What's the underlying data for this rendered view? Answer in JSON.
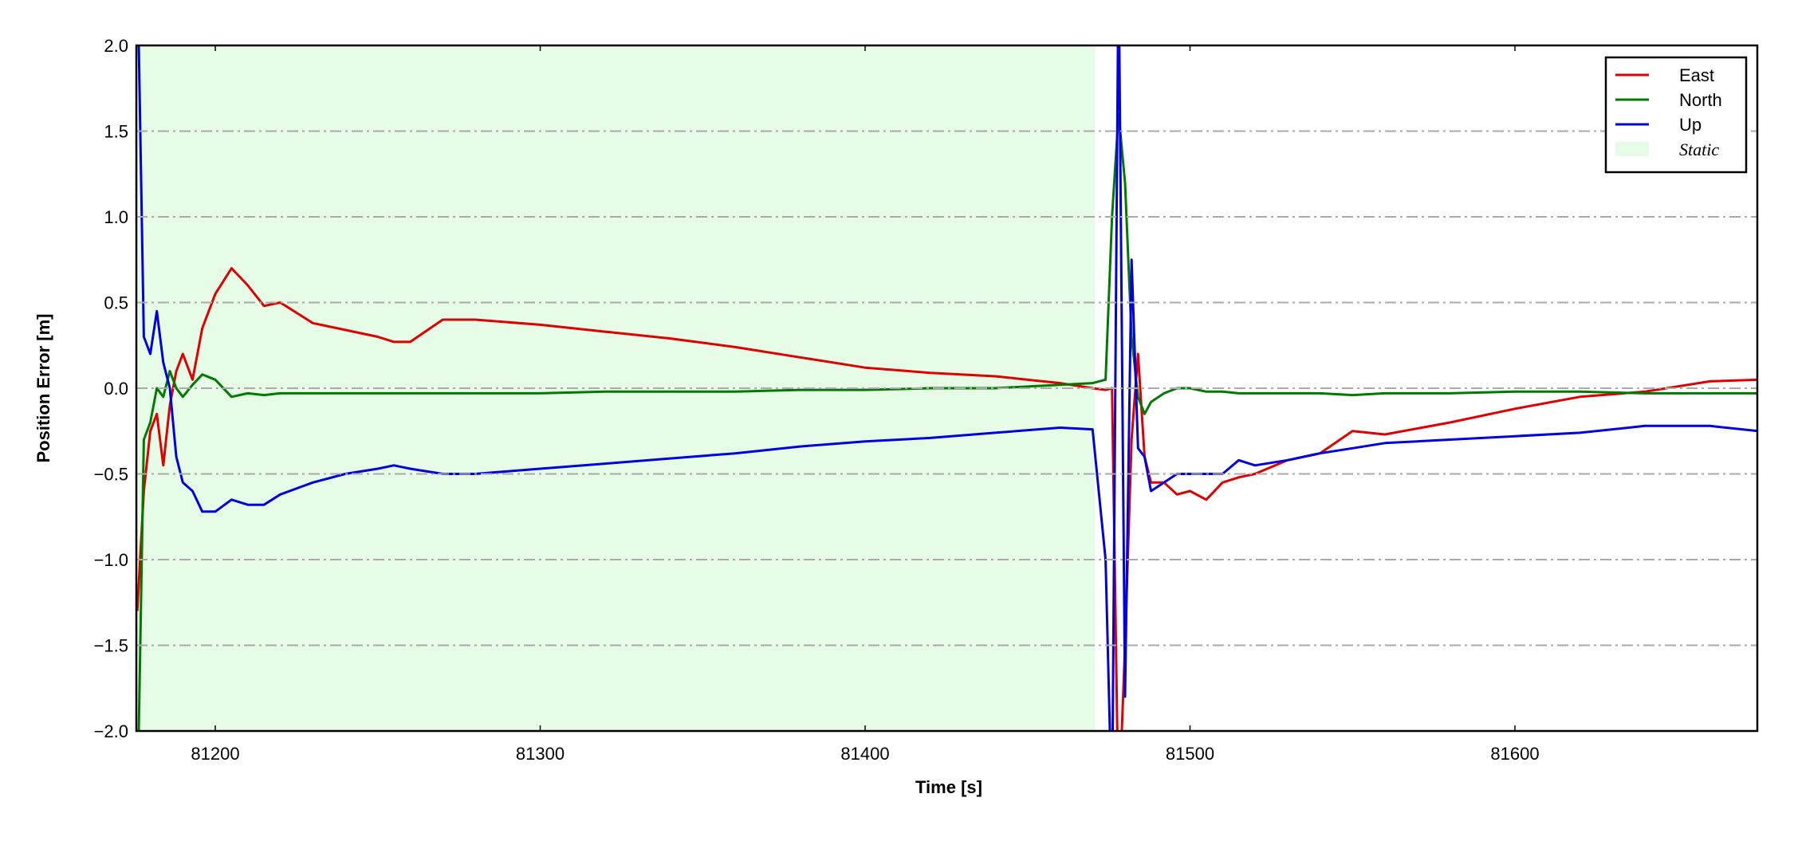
{
  "chart_data": {
    "type": "line",
    "xlabel": "Time [s]",
    "ylabel": "Position Error [m]",
    "xlim": [
      81175.7,
      81674.6
    ],
    "ylim": [
      -2.0,
      2.0
    ],
    "xticks": [
      81200,
      81300,
      81400,
      81500,
      81600
    ],
    "yticks": [
      {
        "value": -2.0,
        "label": "−2.0"
      },
      {
        "value": -1.5,
        "label": "−1.5"
      },
      {
        "value": -1.0,
        "label": "−1.0"
      },
      {
        "value": -0.5,
        "label": "−0.5"
      },
      {
        "value": 0.0,
        "label": "0.0"
      },
      {
        "value": 0.5,
        "label": "0.5"
      },
      {
        "value": 1.0,
        "label": "1.0"
      },
      {
        "value": 1.5,
        "label": "1.5"
      },
      {
        "value": 2.0,
        "label": "2.0"
      }
    ],
    "grid": "y",
    "legend": "upper right",
    "spans": [
      {
        "name": "Static",
        "start": 81175.7,
        "end": 81470.8,
        "color": "#e6fce6"
      }
    ],
    "x": [
      81176,
      81178,
      81180,
      81182,
      81184,
      81186,
      81188,
      81190,
      81193,
      81196,
      81200,
      81205,
      81210,
      81215,
      81220,
      81230,
      81240,
      81250,
      81255,
      81260,
      81270,
      81280,
      81300,
      81320,
      81340,
      81360,
      81380,
      81400,
      81420,
      81440,
      81460,
      81470,
      81474,
      81476,
      81478,
      81480,
      81482,
      81484,
      81486,
      81488,
      81492,
      81496,
      81500,
      81505,
      81510,
      81515,
      81520,
      81530,
      81540,
      81550,
      81560,
      81580,
      81600,
      81620,
      81640,
      81660,
      81675
    ],
    "series": [
      {
        "name": "East",
        "color": "#e00000",
        "values": [
          -1.3,
          -0.6,
          -0.25,
          -0.15,
          -0.45,
          -0.1,
          0.1,
          0.2,
          0.05,
          0.35,
          0.55,
          0.7,
          0.6,
          0.48,
          0.5,
          0.38,
          0.34,
          0.3,
          0.27,
          0.27,
          0.4,
          0.4,
          0.37,
          0.33,
          0.29,
          0.24,
          0.18,
          0.12,
          0.09,
          0.07,
          0.03,
          0.0,
          -0.01,
          0.0,
          -2.5,
          -1.5,
          -0.3,
          0.2,
          -0.4,
          -0.55,
          -0.55,
          -0.62,
          -0.6,
          -0.65,
          -0.55,
          -0.52,
          -0.5,
          -0.42,
          -0.38,
          -0.25,
          -0.27,
          -0.2,
          -0.12,
          -0.05,
          -0.02,
          0.04,
          0.05
        ]
      },
      {
        "name": "North",
        "color": "#007a00",
        "values": [
          -2.5,
          -0.3,
          -0.2,
          0.0,
          -0.05,
          0.1,
          0.0,
          -0.05,
          0.02,
          0.08,
          0.05,
          -0.05,
          -0.03,
          -0.04,
          -0.03,
          -0.03,
          -0.03,
          -0.03,
          -0.03,
          -0.03,
          -0.03,
          -0.03,
          -0.03,
          -0.02,
          -0.02,
          -0.02,
          -0.01,
          -0.01,
          0.0,
          0.0,
          0.02,
          0.03,
          0.05,
          1.0,
          1.6,
          1.2,
          0.3,
          -0.05,
          -0.15,
          -0.08,
          -0.03,
          0.0,
          0.0,
          -0.02,
          -0.02,
          -0.03,
          -0.03,
          -0.03,
          -0.03,
          -0.04,
          -0.03,
          -0.03,
          -0.02,
          -0.02,
          -0.03,
          -0.03,
          -0.03
        ]
      },
      {
        "name": "Up",
        "color": "#0000e0",
        "values": [
          2.5,
          0.3,
          0.2,
          0.45,
          0.15,
          0.0,
          -0.4,
          -0.55,
          -0.6,
          -0.72,
          -0.72,
          -0.65,
          -0.68,
          -0.68,
          -0.62,
          -0.55,
          -0.5,
          -0.47,
          -0.45,
          -0.47,
          -0.5,
          -0.5,
          -0.47,
          -0.44,
          -0.41,
          -0.38,
          -0.34,
          -0.31,
          -0.29,
          -0.26,
          -0.23,
          -0.24,
          -1.0,
          -2.5,
          2.5,
          -1.8,
          0.75,
          -0.35,
          -0.4,
          -0.6,
          -0.55,
          -0.5,
          -0.5,
          -0.5,
          -0.5,
          -0.42,
          -0.45,
          -0.42,
          -0.38,
          -0.35,
          -0.32,
          -0.3,
          -0.28,
          -0.26,
          -0.22,
          -0.22,
          -0.25
        ]
      }
    ]
  }
}
